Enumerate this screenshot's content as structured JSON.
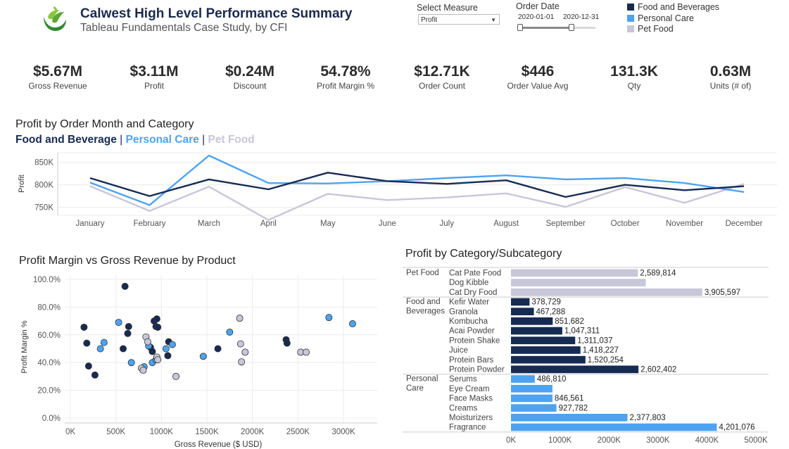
{
  "header": {
    "title": "Calwest High Level Performance Summary",
    "subtitle": "Tableau Fundamentals Case Study, by CFI"
  },
  "controls": {
    "measure_label": "Select Measure",
    "measure_value": "Profit",
    "date_label": "Order Date",
    "date_start": "2020-01-01",
    "date_end": "2020-12-31"
  },
  "legend": {
    "items": [
      {
        "label": "Food and Beverages",
        "color": "#162b52"
      },
      {
        "label": "Personal Care",
        "color": "#4ea3f0"
      },
      {
        "label": "Pet Food",
        "color": "#c8c7d8"
      }
    ]
  },
  "kpis": [
    {
      "value": "$5.67M",
      "label": "Gross Revenue"
    },
    {
      "value": "$3.11M",
      "label": "Profit"
    },
    {
      "value": "$0.24M",
      "label": "Discount"
    },
    {
      "value": "54.78%",
      "label": "Profit Margin %"
    },
    {
      "value": "$12.71K",
      "label": "Order Count"
    },
    {
      "value": "$446",
      "label": "Order Value Avg"
    },
    {
      "value": "131.3K",
      "label": "Qty"
    },
    {
      "value": "0.63M",
      "label": "Units (# of)"
    }
  ],
  "line_section": {
    "title": "Profit by Order Month and Category",
    "cat_food": "Food and Beverage",
    "sep1": "|",
    "cat_personal": "Personal Care",
    "sep2": "|",
    "cat_pet": "Pet Food"
  },
  "scatter_section": {
    "title": "Profit Margin vs Gross Revenue by Product"
  },
  "bar_section": {
    "title": "Profit by Category/Subcategory"
  },
  "chart_data": [
    {
      "type": "line",
      "ylabel": "Profit",
      "x": [
        "January",
        "February",
        "March",
        "April",
        "May",
        "June",
        "July",
        "August",
        "September",
        "October",
        "November",
        "December"
      ],
      "yticks": [
        750000,
        800000,
        850000
      ],
      "ytick_labels": [
        "750K",
        "800K",
        "850K"
      ],
      "ylim": [
        700000,
        880000
      ],
      "grid": true,
      "series": [
        {
          "name": "Food and Beverage",
          "color": "#162b52",
          "values": [
            815000,
            775000,
            812000,
            790000,
            827000,
            808000,
            802000,
            810000,
            773000,
            800000,
            788000,
            797000
          ]
        },
        {
          "name": "Personal Care",
          "color": "#4ea3f0",
          "values": [
            805000,
            755000,
            865000,
            804000,
            803000,
            808000,
            815000,
            821000,
            812000,
            815000,
            804000,
            784000
          ]
        },
        {
          "name": "Pet Food",
          "color": "#c8c7d8",
          "values": [
            797000,
            742000,
            796000,
            722000,
            780000,
            766000,
            772000,
            781000,
            751000,
            795000,
            760000,
            802000
          ]
        }
      ]
    },
    {
      "type": "scatter",
      "xlabel": "Gross Revenue ($ USD)",
      "ylabel": "Profit Margin %",
      "xlim": [
        0,
        3200000
      ],
      "ylim": [
        0,
        1
      ],
      "xticks": [
        0,
        500000,
        1000000,
        1500000,
        2000000,
        2500000,
        3000000
      ],
      "xtick_labels": [
        "0K",
        "500K",
        "1000K",
        "1500K",
        "2000K",
        "2500K",
        "3000K"
      ],
      "yticks": [
        0,
        0.2,
        0.4,
        0.6,
        0.8,
        1.0
      ],
      "ytick_labels": [
        "0.0%",
        "20.0%",
        "40.0%",
        "60.0%",
        "80.0%",
        "100.0%"
      ],
      "grid": true,
      "series": [
        {
          "name": "Food and Beverages",
          "color": "#162b52",
          "points": [
            [
              150000,
              0.655
            ],
            [
              180000,
              0.54
            ],
            [
              200000,
              0.375
            ],
            [
              270000,
              0.31
            ],
            [
              600000,
              0.95
            ],
            [
              640000,
              0.66
            ],
            [
              630000,
              0.61
            ],
            [
              580000,
              0.5
            ],
            [
              880000,
              0.51
            ],
            [
              900000,
              0.48
            ],
            [
              920000,
              0.7
            ],
            [
              950000,
              0.715
            ],
            [
              940000,
              0.66
            ],
            [
              960000,
              0.655
            ],
            [
              1070000,
              0.45
            ],
            [
              1080000,
              0.55
            ],
            [
              1620000,
              0.5
            ],
            [
              2370000,
              0.565
            ],
            [
              2380000,
              0.54
            ]
          ]
        },
        {
          "name": "Personal Care",
          "color": "#4ea3f0",
          "points": [
            [
              330000,
              0.5
            ],
            [
              370000,
              0.545
            ],
            [
              530000,
              0.69
            ],
            [
              670000,
              0.4
            ],
            [
              810000,
              0.37
            ],
            [
              860000,
              0.52
            ],
            [
              900000,
              0.4
            ],
            [
              940000,
              0.42
            ],
            [
              1050000,
              0.5
            ],
            [
              1120000,
              0.53
            ],
            [
              1460000,
              0.445
            ],
            [
              1750000,
              0.62
            ],
            [
              2840000,
              0.725
            ],
            [
              3100000,
              0.68
            ]
          ]
        },
        {
          "name": "Pet Food",
          "color": "#c8c7d8",
          "points": [
            [
              780000,
              0.36
            ],
            [
              800000,
              0.345
            ],
            [
              830000,
              0.585
            ],
            [
              850000,
              0.55
            ],
            [
              950000,
              0.44
            ],
            [
              960000,
              0.42
            ],
            [
              1160000,
              0.3
            ],
            [
              1860000,
              0.72
            ],
            [
              1870000,
              0.535
            ],
            [
              1880000,
              0.405
            ],
            [
              1920000,
              0.475
            ],
            [
              2530000,
              0.475
            ],
            [
              2590000,
              0.475
            ]
          ]
        }
      ]
    },
    {
      "type": "bar",
      "orientation": "horizontal",
      "xlim": [
        0,
        5000000
      ],
      "xticks": [
        0,
        1000000,
        2000000,
        3000000,
        4000000,
        5000000
      ],
      "xtick_labels": [
        "0K",
        "1000K",
        "2000K",
        "3000K",
        "4000K",
        "5000K"
      ],
      "groups": [
        {
          "name": "Pet Food",
          "label_lines": [
            "Pet Food"
          ],
          "color": "#c8c7d8",
          "items": [
            {
              "category": "Cat Pate Food",
              "value": 2589814,
              "label": "2,589,814"
            },
            {
              "category": "Dog Kibble",
              "value": 2750000,
              "label": ""
            },
            {
              "category": "Cat Dry Food",
              "value": 3905597,
              "label": "3,905,597"
            }
          ]
        },
        {
          "name": "Food and Beverages",
          "label_lines": [
            "Food and",
            "Beverages"
          ],
          "color": "#162b52",
          "items": [
            {
              "category": "Kefir Water",
              "value": 378729,
              "label": "378,729"
            },
            {
              "category": "Granola",
              "value": 467288,
              "label": "467,288"
            },
            {
              "category": "Kombucha",
              "value": 851682,
              "label": "851,682"
            },
            {
              "category": "Acai Powder",
              "value": 1047311,
              "label": "1,047,311"
            },
            {
              "category": "Protein Shake",
              "value": 1311037,
              "label": "1,311,037"
            },
            {
              "category": "Juice",
              "value": 1418227,
              "label": "1,418,227"
            },
            {
              "category": "Protein Bars",
              "value": 1520254,
              "label": "1,520,254"
            },
            {
              "category": "Protein Powder",
              "value": 2602402,
              "label": "2,602,402"
            }
          ]
        },
        {
          "name": "Personal Care",
          "label_lines": [
            "Personal",
            "Care"
          ],
          "color": "#4ea3f0",
          "items": [
            {
              "category": "Serums",
              "value": 486810,
              "label": "486,810"
            },
            {
              "category": "Eye Cream",
              "value": 846561,
              "label": ""
            },
            {
              "category": "Face Masks",
              "value": 846561,
              "label": "846,561"
            },
            {
              "category": "Creams",
              "value": 927782,
              "label": "927,782"
            },
            {
              "category": "Moisturizers",
              "value": 2377803,
              "label": "2,377,803"
            },
            {
              "category": "Fragrance",
              "value": 4201076,
              "label": "4,201,076"
            }
          ]
        }
      ]
    }
  ]
}
